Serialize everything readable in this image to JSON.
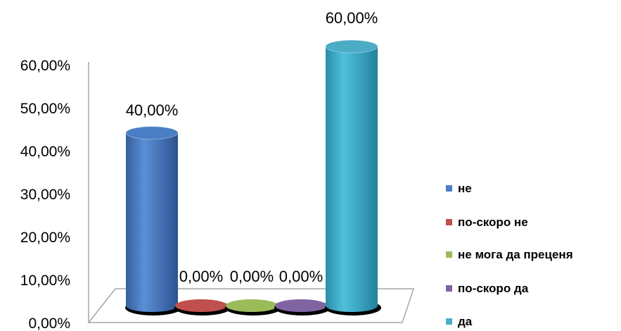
{
  "chart_data": {
    "type": "bar",
    "style": "3d-cylinder",
    "categories": [
      "не",
      "по-скоро не",
      "не мога да преценя",
      "по-скоро да",
      "да"
    ],
    "values": [
      40,
      0,
      0,
      0,
      60
    ],
    "data_labels": [
      "40,00%",
      "0,00%",
      "0,00%",
      "0,00%",
      "60,00%"
    ],
    "colors": [
      "#4a7ec4",
      "#c0504d",
      "#9bbb59",
      "#8064a2",
      "#4bacc6"
    ],
    "y_ticks": [
      "0,00%",
      "10,00%",
      "20,00%",
      "30,00%",
      "40,00%",
      "50,00%",
      "60,00%"
    ],
    "ylim": [
      0,
      60
    ],
    "grid": false,
    "legend": {
      "position": "right",
      "items": [
        "не",
        "по-скоро не",
        "не мога да преценя",
        "по-скоро да",
        "да"
      ]
    },
    "title": "",
    "xlabel": "",
    "ylabel": ""
  }
}
